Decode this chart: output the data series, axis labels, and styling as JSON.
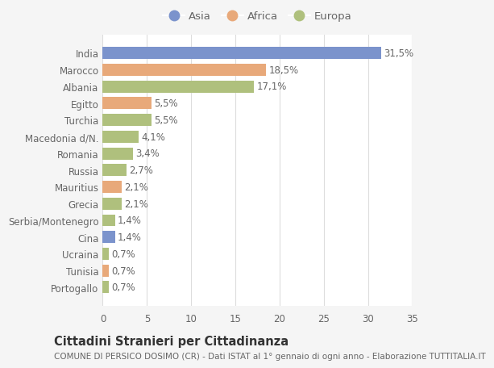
{
  "categories": [
    "India",
    "Marocco",
    "Albania",
    "Egitto",
    "Turchia",
    "Macedonia d/N.",
    "Romania",
    "Russia",
    "Mauritius",
    "Grecia",
    "Serbia/Montenegro",
    "Cina",
    "Ucraina",
    "Tunisia",
    "Portogallo"
  ],
  "values": [
    31.5,
    18.5,
    17.1,
    5.5,
    5.5,
    4.1,
    3.4,
    2.7,
    2.1,
    2.1,
    1.4,
    1.4,
    0.7,
    0.7,
    0.7
  ],
  "labels": [
    "31,5%",
    "18,5%",
    "17,1%",
    "5,5%",
    "5,5%",
    "4,1%",
    "3,4%",
    "2,7%",
    "2,1%",
    "2,1%",
    "1,4%",
    "1,4%",
    "0,7%",
    "0,7%",
    "0,7%"
  ],
  "continent": [
    "Asia",
    "Africa",
    "Europa",
    "Africa",
    "Europa",
    "Europa",
    "Europa",
    "Europa",
    "Africa",
    "Europa",
    "Europa",
    "Asia",
    "Europa",
    "Africa",
    "Europa"
  ],
  "colors": {
    "Asia": "#7b93cc",
    "Africa": "#e8a97a",
    "Europa": "#afc07d"
  },
  "legend_labels": [
    "Asia",
    "Africa",
    "Europa"
  ],
  "title": "Cittadini Stranieri per Cittadinanza",
  "subtitle": "COMUNE DI PERSICO DOSIMO (CR) - Dati ISTAT al 1° gennaio di ogni anno - Elaborazione TUTTITALIA.IT",
  "xlim": [
    0,
    35
  ],
  "xticks": [
    0,
    5,
    10,
    15,
    20,
    25,
    30,
    35
  ],
  "background_color": "#f5f5f5",
  "plot_bg": "#ffffff",
  "grid_color": "#dddddd",
  "text_color": "#666666",
  "label_fontsize": 8.5,
  "tick_fontsize": 8.5,
  "title_fontsize": 10.5,
  "subtitle_fontsize": 7.5
}
